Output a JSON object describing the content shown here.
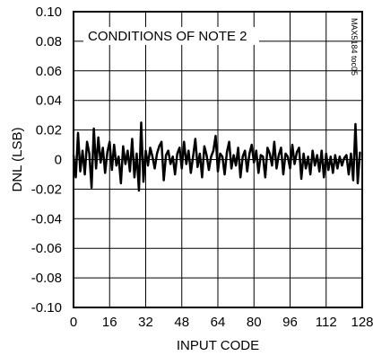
{
  "chart_data": {
    "type": "line",
    "title": "",
    "xlabel": "INPUT CODE",
    "ylabel": "DNL (LSB)",
    "xlim": [
      0,
      128
    ],
    "ylim": [
      -0.1,
      0.1
    ],
    "grid": true,
    "x_ticks": [
      0,
      16,
      32,
      48,
      64,
      80,
      96,
      112,
      128
    ],
    "x_tick_labels": [
      "0",
      "16",
      "32",
      "48",
      "64",
      "80",
      "96",
      "112",
      "128"
    ],
    "y_ticks": [
      0.1,
      0.08,
      0.06,
      0.04,
      0.02,
      0,
      -0.02,
      -0.04,
      -0.06,
      -0.08,
      -0.1
    ],
    "y_tick_labels": [
      "0.10",
      "0.08",
      "0.06",
      "0.04",
      "0.02",
      "0",
      "-0.02",
      "-0.04",
      "-0.06",
      "-0.08",
      "-0.10"
    ],
    "annotation": "CONDITIONS OF NOTE 2",
    "watermark": "MAX5184 toc05",
    "line_color": "#000000",
    "series": [
      {
        "x": [
          0,
          1,
          2,
          3,
          4,
          5,
          6,
          7,
          8,
          9,
          10,
          11,
          12,
          13,
          14,
          15,
          16,
          17,
          18,
          19,
          20,
          21,
          22,
          23,
          24,
          25,
          26,
          27,
          28,
          29,
          30,
          31,
          32,
          33,
          34,
          35,
          36,
          37,
          38,
          39,
          40,
          41,
          42,
          43,
          44,
          45,
          46,
          47,
          48,
          49,
          50,
          51,
          52,
          53,
          54,
          55,
          56,
          57,
          58,
          59,
          60,
          61,
          62,
          63,
          64,
          65,
          66,
          67,
          68,
          69,
          70,
          71,
          72,
          73,
          74,
          75,
          76,
          77,
          78,
          79,
          80,
          81,
          82,
          83,
          84,
          85,
          86,
          87,
          88,
          89,
          90,
          91,
          92,
          93,
          94,
          95,
          96,
          97,
          98,
          99,
          100,
          101,
          102,
          103,
          104,
          105,
          106,
          107,
          108,
          109,
          110,
          111,
          112,
          113,
          114,
          115,
          116,
          117,
          118,
          119,
          120,
          121,
          122,
          123,
          124,
          125,
          126,
          127
        ],
        "values": [
          0.003,
          -0.012,
          0.018,
          -0.008,
          0.006,
          -0.01,
          0.012,
          0.004,
          -0.019,
          0.021,
          -0.006,
          0.015,
          -0.002,
          0.008,
          -0.009,
          0.005,
          0.012,
          -0.007,
          0.01,
          -0.004,
          0.002,
          -0.016,
          0.009,
          -0.003,
          0.006,
          -0.008,
          0.014,
          -0.012,
          0.004,
          -0.021,
          0.025,
          -0.015,
          0.006,
          -0.004,
          0.008,
          0.002,
          -0.006,
          0.004,
          0.009,
          0.012,
          -0.014,
          0.003,
          0.006,
          -0.003,
          0.002,
          -0.01,
          0.004,
          0.008,
          -0.006,
          0.012,
          -0.003,
          0.006,
          -0.009,
          0.002,
          0.014,
          -0.005,
          0.004,
          -0.012,
          0.009,
          0.003,
          -0.007,
          0.002,
          0.006,
          0.016,
          -0.008,
          0.004,
          0.002,
          -0.01,
          0.005,
          0.012,
          -0.006,
          0.003,
          -0.004,
          0.008,
          -0.012,
          0.002,
          0.006,
          -0.008,
          0.004,
          0.01,
          -0.002,
          0.006,
          -0.009,
          0.003,
          0.002,
          -0.012,
          0.008,
          0.004,
          -0.004,
          0.012,
          -0.006,
          0.003,
          0.008,
          -0.01,
          0.004,
          0.002,
          -0.006,
          0.01,
          -0.003,
          0.005,
          0.008,
          -0.013,
          0.004,
          -0.006,
          0.002,
          -0.01,
          0.006,
          -0.004,
          0.003,
          -0.008,
          0.006,
          -0.012,
          0.004,
          -0.007,
          0.002,
          -0.009,
          0.003,
          -0.006,
          0.002,
          -0.004,
          0.001,
          0.003,
          -0.01,
          0.004,
          -0.014,
          0.024,
          -0.016,
          0.005
        ]
      }
    ]
  }
}
